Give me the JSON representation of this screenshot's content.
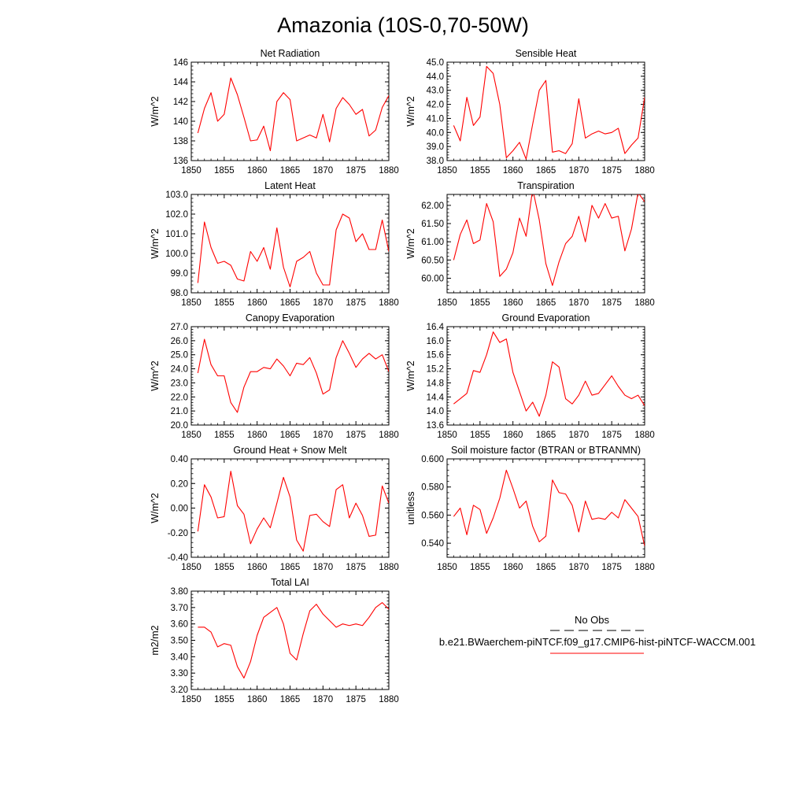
{
  "figure": {
    "title": "Amazonia (10S-0,70-50W)"
  },
  "legend": {
    "obs_label": "No Obs",
    "case_label": "b.e21.BWaerchem-piNTCF.f09_g17.CMIP6-hist-piNTCF-WACCM.001",
    "case_color": "#ff0000",
    "obs_color": "#000000"
  },
  "chart_data": [
    {
      "type": "line",
      "title": "Net Radiation",
      "xlabel": "",
      "ylabel": "W/m^2",
      "xlim": [
        1850,
        1880
      ],
      "ylim": [
        136,
        146
      ],
      "x_ticks": [
        1850,
        1855,
        1860,
        1865,
        1870,
        1875,
        1880
      ],
      "y_ticks": [
        "136",
        "138",
        "140",
        "142",
        "144",
        "146"
      ],
      "line_color": "#ff0000",
      "x": [
        1851,
        1852,
        1853,
        1854,
        1855,
        1856,
        1857,
        1858,
        1859,
        1860,
        1861,
        1862,
        1863,
        1864,
        1865,
        1866,
        1867,
        1868,
        1869,
        1870,
        1871,
        1872,
        1873,
        1874,
        1875,
        1876,
        1877,
        1878,
        1879,
        1880
      ],
      "y": [
        138.8,
        141.3,
        142.9,
        140.0,
        140.7,
        144.4,
        142.7,
        140.4,
        138.0,
        138.1,
        139.5,
        137.0,
        142.0,
        142.9,
        142.2,
        138.0,
        138.3,
        138.6,
        138.3,
        140.7,
        137.9,
        141.3,
        142.4,
        141.7,
        140.7,
        141.2,
        138.5,
        139.1,
        141.4,
        142.6
      ]
    },
    {
      "type": "line",
      "title": "Sensible Heat",
      "xlabel": "",
      "ylabel": "W/m^2",
      "xlim": [
        1850,
        1880
      ],
      "ylim": [
        38.0,
        45.0
      ],
      "x_ticks": [
        1850,
        1855,
        1860,
        1865,
        1870,
        1875,
        1880
      ],
      "y_ticks": [
        "38.0",
        "39.0",
        "40.0",
        "41.0",
        "42.0",
        "43.0",
        "44.0",
        "45.0"
      ],
      "line_color": "#ff0000",
      "x": [
        1851,
        1852,
        1853,
        1854,
        1855,
        1856,
        1857,
        1858,
        1859,
        1860,
        1861,
        1862,
        1863,
        1864,
        1865,
        1866,
        1867,
        1868,
        1869,
        1870,
        1871,
        1872,
        1873,
        1874,
        1875,
        1876,
        1877,
        1878,
        1879,
        1880
      ],
      "y": [
        40.5,
        39.4,
        42.5,
        40.5,
        41.1,
        44.7,
        44.2,
        42.0,
        38.2,
        38.7,
        39.3,
        38.1,
        40.6,
        43.0,
        43.7,
        38.6,
        38.7,
        38.5,
        39.2,
        42.4,
        39.6,
        39.9,
        40.1,
        39.9,
        40.0,
        40.3,
        38.5,
        39.1,
        39.6,
        42.5
      ]
    },
    {
      "type": "line",
      "title": "Latent Heat",
      "xlabel": "",
      "ylabel": "W/m^2",
      "xlim": [
        1850,
        1880
      ],
      "ylim": [
        98.0,
        103.0
      ],
      "x_ticks": [
        1850,
        1855,
        1860,
        1865,
        1870,
        1875,
        1880
      ],
      "y_ticks": [
        "98.0",
        "99.0",
        "100.0",
        "101.0",
        "102.0",
        "103.0"
      ],
      "line_color": "#ff0000",
      "x": [
        1851,
        1852,
        1853,
        1854,
        1855,
        1856,
        1857,
        1858,
        1859,
        1860,
        1861,
        1862,
        1863,
        1864,
        1865,
        1866,
        1867,
        1868,
        1869,
        1870,
        1871,
        1872,
        1873,
        1874,
        1875,
        1876,
        1877,
        1878,
        1879,
        1880
      ],
      "y": [
        98.5,
        101.6,
        100.3,
        99.5,
        99.6,
        99.4,
        98.7,
        98.6,
        100.1,
        99.6,
        100.3,
        99.2,
        101.3,
        99.3,
        98.3,
        99.6,
        99.8,
        100.1,
        99.0,
        98.4,
        98.4,
        101.2,
        102.0,
        101.8,
        100.6,
        101.0,
        100.2,
        100.2,
        101.7,
        100.1
      ]
    },
    {
      "type": "line",
      "title": "Transpiration",
      "xlabel": "",
      "ylabel": "W/m^2",
      "xlim": [
        1850,
        1880
      ],
      "ylim": [
        59.6,
        62.3
      ],
      "x_ticks": [
        1850,
        1855,
        1860,
        1865,
        1870,
        1875,
        1880
      ],
      "y_ticks": [
        "60.00",
        "60.50",
        "61.00",
        "61.50",
        "62.00"
      ],
      "line_color": "#ff0000",
      "x": [
        1851,
        1852,
        1853,
        1854,
        1855,
        1856,
        1857,
        1858,
        1859,
        1860,
        1861,
        1862,
        1863,
        1864,
        1865,
        1866,
        1867,
        1868,
        1869,
        1870,
        1871,
        1872,
        1873,
        1874,
        1875,
        1876,
        1877,
        1878,
        1879,
        1880
      ],
      "y": [
        60.5,
        61.2,
        61.6,
        60.95,
        61.05,
        62.05,
        61.55,
        60.05,
        60.25,
        60.7,
        61.65,
        61.15,
        62.45,
        61.6,
        60.4,
        59.8,
        60.45,
        60.95,
        61.15,
        61.7,
        61.0,
        62.0,
        61.65,
        62.05,
        61.65,
        61.7,
        60.75,
        61.35,
        62.35,
        62.1
      ]
    },
    {
      "type": "line",
      "title": "Canopy Evaporation",
      "xlabel": "",
      "ylabel": "W/m^2",
      "xlim": [
        1850,
        1880
      ],
      "ylim": [
        20.0,
        27.0
      ],
      "x_ticks": [
        1850,
        1855,
        1860,
        1865,
        1870,
        1875,
        1880
      ],
      "y_ticks": [
        "20.0",
        "21.0",
        "22.0",
        "23.0",
        "24.0",
        "25.0",
        "26.0",
        "27.0"
      ],
      "line_color": "#ff0000",
      "x": [
        1851,
        1852,
        1853,
        1854,
        1855,
        1856,
        1857,
        1858,
        1859,
        1860,
        1861,
        1862,
        1863,
        1864,
        1865,
        1866,
        1867,
        1868,
        1869,
        1870,
        1871,
        1872,
        1873,
        1874,
        1875,
        1876,
        1877,
        1878,
        1879,
        1880
      ],
      "y": [
        23.7,
        26.1,
        24.3,
        23.5,
        23.5,
        21.6,
        20.9,
        22.7,
        23.8,
        23.8,
        24.1,
        24.0,
        24.7,
        24.2,
        23.5,
        24.4,
        24.3,
        24.8,
        23.7,
        22.2,
        22.5,
        24.8,
        26.0,
        25.1,
        24.1,
        24.7,
        25.1,
        24.7,
        25.0,
        23.8
      ]
    },
    {
      "type": "line",
      "title": "Ground Evaporation",
      "xlabel": "",
      "ylabel": "W/m^2",
      "xlim": [
        1850,
        1880
      ],
      "ylim": [
        13.6,
        16.4
      ],
      "x_ticks": [
        1850,
        1855,
        1860,
        1865,
        1870,
        1875,
        1880
      ],
      "y_ticks": [
        "13.6",
        "14.0",
        "14.4",
        "14.8",
        "15.2",
        "15.6",
        "16.0",
        "16.4"
      ],
      "line_color": "#ff0000",
      "x": [
        1851,
        1852,
        1853,
        1854,
        1855,
        1856,
        1857,
        1858,
        1859,
        1860,
        1861,
        1862,
        1863,
        1864,
        1865,
        1866,
        1867,
        1868,
        1869,
        1870,
        1871,
        1872,
        1873,
        1874,
        1875,
        1876,
        1877,
        1878,
        1879,
        1880
      ],
      "y": [
        14.2,
        14.35,
        14.5,
        15.15,
        15.1,
        15.6,
        16.25,
        15.95,
        16.05,
        15.1,
        14.55,
        14.0,
        14.25,
        13.85,
        14.45,
        15.4,
        15.25,
        14.35,
        14.2,
        14.45,
        14.85,
        14.45,
        14.5,
        14.75,
        15.0,
        14.7,
        14.45,
        14.35,
        14.45,
        14.15
      ]
    },
    {
      "type": "line",
      "title": "Ground Heat + Snow Melt",
      "xlabel": "",
      "ylabel": "W/m^2",
      "xlim": [
        1850,
        1880
      ],
      "ylim": [
        -0.4,
        0.4
      ],
      "x_ticks": [
        1850,
        1855,
        1860,
        1865,
        1870,
        1875,
        1880
      ],
      "y_ticks": [
        "-0.40",
        "-0.20",
        "0.00",
        "0.20",
        "0.40"
      ],
      "line_color": "#ff0000",
      "x": [
        1851,
        1852,
        1853,
        1854,
        1855,
        1856,
        1857,
        1858,
        1859,
        1860,
        1861,
        1862,
        1863,
        1864,
        1865,
        1866,
        1867,
        1868,
        1869,
        1870,
        1871,
        1872,
        1873,
        1874,
        1875,
        1876,
        1877,
        1878,
        1879,
        1880
      ],
      "y": [
        -0.19,
        0.19,
        0.09,
        -0.08,
        -0.07,
        0.3,
        0.02,
        -0.05,
        -0.29,
        -0.17,
        -0.08,
        -0.16,
        0.04,
        0.25,
        0.09,
        -0.26,
        -0.35,
        -0.06,
        -0.05,
        -0.11,
        -0.15,
        0.15,
        0.19,
        -0.08,
        0.04,
        -0.06,
        -0.23,
        -0.22,
        0.18,
        0.04
      ]
    },
    {
      "type": "line",
      "title": "Soil moisture factor (BTRAN or BTRANMN)",
      "xlabel": "",
      "ylabel": "unitless",
      "xlim": [
        1850,
        1880
      ],
      "ylim": [
        0.53,
        0.6
      ],
      "x_ticks": [
        1850,
        1855,
        1860,
        1865,
        1870,
        1875,
        1880
      ],
      "y_ticks": [
        "0.540",
        "0.560",
        "0.580",
        "0.600"
      ],
      "line_color": "#ff0000",
      "x": [
        1851,
        1852,
        1853,
        1854,
        1855,
        1856,
        1857,
        1858,
        1859,
        1860,
        1861,
        1862,
        1863,
        1864,
        1865,
        1866,
        1867,
        1868,
        1869,
        1870,
        1871,
        1872,
        1873,
        1874,
        1875,
        1876,
        1877,
        1878,
        1879,
        1880
      ],
      "y": [
        0.559,
        0.565,
        0.546,
        0.567,
        0.564,
        0.547,
        0.558,
        0.572,
        0.592,
        0.579,
        0.565,
        0.57,
        0.552,
        0.541,
        0.545,
        0.585,
        0.576,
        0.575,
        0.567,
        0.548,
        0.57,
        0.557,
        0.558,
        0.557,
        0.562,
        0.558,
        0.571,
        0.565,
        0.559,
        0.538
      ]
    },
    {
      "type": "line",
      "title": "Total LAI",
      "xlabel": "",
      "ylabel": "m2/m2",
      "xlim": [
        1850,
        1880
      ],
      "ylim": [
        3.2,
        3.8
      ],
      "x_ticks": [
        1850,
        1855,
        1860,
        1865,
        1870,
        1875,
        1880
      ],
      "y_ticks": [
        "3.20",
        "3.30",
        "3.40",
        "3.50",
        "3.60",
        "3.70",
        "3.80"
      ],
      "line_color": "#ff0000",
      "x": [
        1851,
        1852,
        1853,
        1854,
        1855,
        1856,
        1857,
        1858,
        1859,
        1860,
        1861,
        1862,
        1863,
        1864,
        1865,
        1866,
        1867,
        1868,
        1869,
        1870,
        1871,
        1872,
        1873,
        1874,
        1875,
        1876,
        1877,
        1878,
        1879,
        1880
      ],
      "y": [
        3.58,
        3.58,
        3.55,
        3.46,
        3.48,
        3.47,
        3.34,
        3.27,
        3.37,
        3.53,
        3.64,
        3.67,
        3.7,
        3.6,
        3.42,
        3.38,
        3.54,
        3.68,
        3.72,
        3.66,
        3.62,
        3.58,
        3.6,
        3.59,
        3.6,
        3.59,
        3.64,
        3.7,
        3.73,
        3.69
      ]
    }
  ]
}
